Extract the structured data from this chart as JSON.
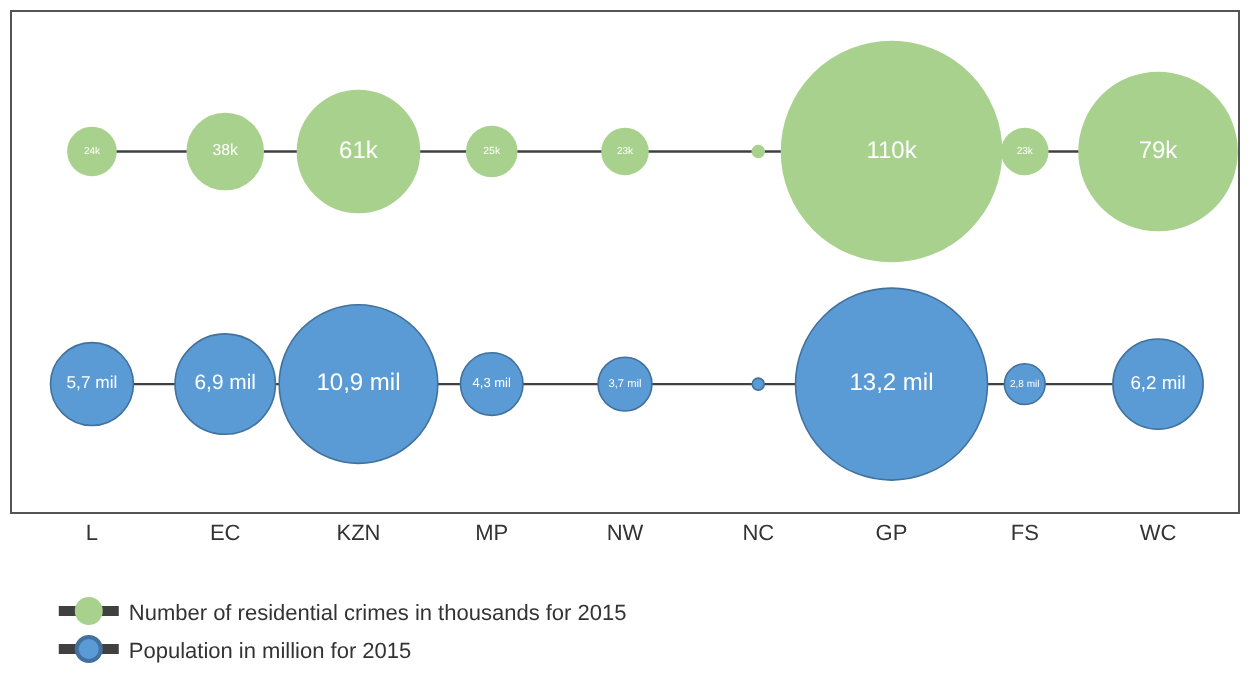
{
  "chart_data": {
    "type": "other",
    "categories": [
      "L",
      "EC",
      "KZN",
      "MP",
      "NW",
      "NC",
      "GP",
      "FS",
      "WC"
    ],
    "legend": "bottom left",
    "series": [
      {
        "name": "Number of residential crimes in thousands for 2015",
        "color": "#a9d18e",
        "values": [
          24,
          38,
          61,
          25,
          23,
          null,
          110,
          23,
          79
        ],
        "value_labels": [
          "24k",
          "38k",
          "61k",
          "25k",
          "23k",
          null,
          "110k",
          "23k",
          "79k"
        ]
      },
      {
        "name": "Population in million for 2015",
        "color": "#5b9bd5",
        "values": [
          5.7,
          6.9,
          10.9,
          4.3,
          3.7,
          null,
          13.2,
          2.8,
          6.2
        ],
        "value_labels": [
          "5,7 mil",
          "6,9 mil",
          "10,9 mil",
          "4,3 mil",
          "3,7 mil",
          null,
          "13,2 mil",
          "2,8 mil",
          "6,2 mil"
        ]
      }
    ]
  }
}
